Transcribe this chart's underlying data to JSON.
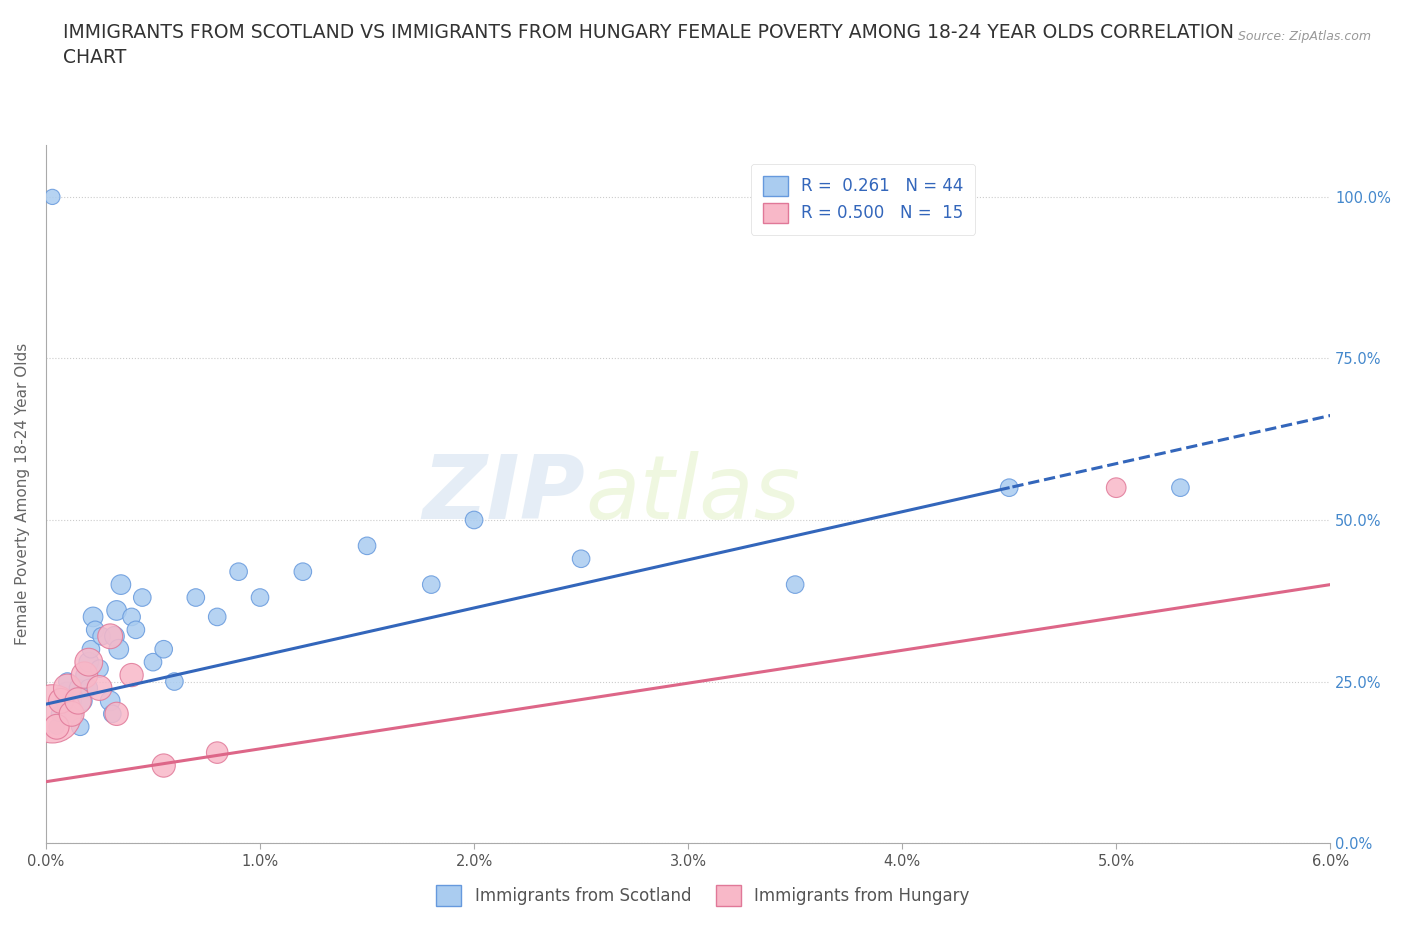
{
  "title": "IMMIGRANTS FROM SCOTLAND VS IMMIGRANTS FROM HUNGARY FEMALE POVERTY AMONG 18-24 YEAR OLDS CORRELATION\nCHART",
  "source_text": "Source: ZipAtlas.com",
  "ylabel": "Female Poverty Among 18-24 Year Olds",
  "xlim": [
    0.0,
    0.06
  ],
  "ylim": [
    0.0,
    1.08
  ],
  "xticks": [
    0.0,
    0.01,
    0.02,
    0.03,
    0.04,
    0.05,
    0.06
  ],
  "xtick_labels": [
    "0.0%",
    "1.0%",
    "2.0%",
    "3.0%",
    "4.0%",
    "5.0%",
    "6.0%"
  ],
  "yticks": [
    0.0,
    0.25,
    0.5,
    0.75,
    1.0
  ],
  "ytick_labels": [
    "0.0%",
    "25.0%",
    "50.0%",
    "75.0%",
    "100.0%"
  ],
  "scotland_color": "#aaccf0",
  "scotland_edge_color": "#6699dd",
  "hungary_color": "#f8b8c8",
  "hungary_edge_color": "#e07898",
  "line_scotland_color": "#3366bb",
  "line_hungary_color": "#dd6688",
  "R_scotland": 0.261,
  "N_scotland": 44,
  "R_hungary": 0.5,
  "N_hungary": 15,
  "watermark_zip": "ZIP",
  "watermark_atlas": "atlas",
  "legend_label_scotland": "Immigrants from Scotland",
  "legend_label_hungary": "Immigrants from Hungary",
  "scotland_x": [
    0.0003,
    0.0005,
    0.0006,
    0.0008,
    0.001,
    0.001,
    0.001,
    0.0012,
    0.0013,
    0.0015,
    0.0016,
    0.0017,
    0.0018,
    0.002,
    0.002,
    0.0021,
    0.0022,
    0.0023,
    0.0025,
    0.0026,
    0.003,
    0.0031,
    0.0032,
    0.0033,
    0.0034,
    0.0035,
    0.004,
    0.0042,
    0.0045,
    0.005,
    0.0055,
    0.006,
    0.007,
    0.008,
    0.009,
    0.01,
    0.012,
    0.015,
    0.018,
    0.02,
    0.025,
    0.035,
    0.045,
    0.053
  ],
  "scotland_y": [
    1.0,
    0.18,
    0.2,
    0.22,
    0.23,
    0.21,
    0.25,
    0.22,
    0.2,
    0.24,
    0.18,
    0.22,
    0.26,
    0.28,
    0.24,
    0.3,
    0.35,
    0.33,
    0.27,
    0.32,
    0.22,
    0.2,
    0.32,
    0.36,
    0.3,
    0.4,
    0.35,
    0.33,
    0.38,
    0.28,
    0.3,
    0.25,
    0.38,
    0.35,
    0.42,
    0.38,
    0.42,
    0.46,
    0.4,
    0.5,
    0.44,
    0.4,
    0.55,
    0.55
  ],
  "scotland_size": [
    15,
    15,
    15,
    15,
    40,
    25,
    20,
    25,
    20,
    20,
    20,
    25,
    20,
    25,
    20,
    20,
    25,
    20,
    20,
    20,
    25,
    20,
    25,
    25,
    25,
    25,
    20,
    20,
    20,
    20,
    20,
    20,
    20,
    20,
    20,
    20,
    20,
    20,
    20,
    20,
    20,
    20,
    20,
    20
  ],
  "hungary_x": [
    0.0003,
    0.0005,
    0.0007,
    0.001,
    0.0012,
    0.0015,
    0.0018,
    0.002,
    0.0025,
    0.003,
    0.0033,
    0.004,
    0.0055,
    0.008,
    0.05
  ],
  "hungary_y": [
    0.2,
    0.18,
    0.22,
    0.24,
    0.2,
    0.22,
    0.26,
    0.28,
    0.24,
    0.32,
    0.2,
    0.26,
    0.12,
    0.14,
    0.55
  ],
  "hungary_size": [
    220,
    40,
    40,
    50,
    40,
    45,
    45,
    50,
    40,
    40,
    35,
    35,
    35,
    30,
    25
  ],
  "background_color": "#ffffff",
  "grid_color": "#cccccc",
  "title_fontsize": 13.5,
  "label_fontsize": 11,
  "tick_fontsize": 10.5,
  "legend_fontsize": 12,
  "ytick_color_right": "#4488cc",
  "line_solid_end": 0.045,
  "line_extend_end": 0.06
}
